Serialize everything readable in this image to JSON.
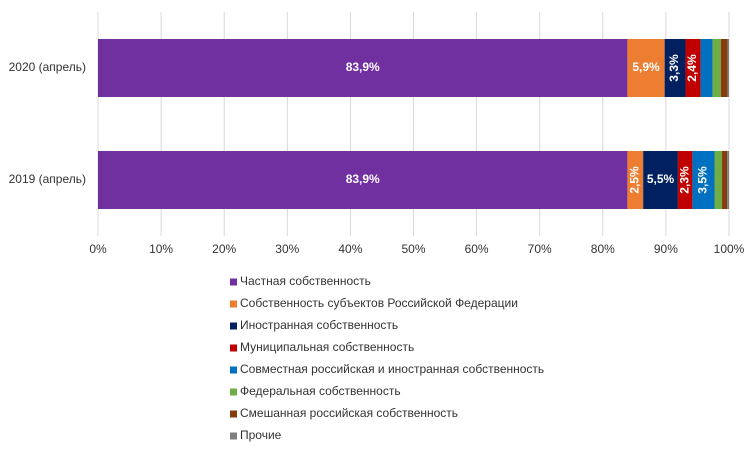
{
  "chart_data": {
    "type": "stacked-bar-horizontal",
    "categories": [
      "2020 (апрель)",
      "2019 (апрель)"
    ],
    "series": [
      {
        "name": "Частная собственность",
        "color": "#7030a0",
        "values": [
          83.9,
          83.9
        ],
        "value_labels": [
          "83,9%",
          "83,9%"
        ]
      },
      {
        "name": "Собственность субъектов Российской Федерации",
        "color": "#ed7d31",
        "values": [
          5.9,
          2.5
        ],
        "value_labels": [
          "5,9%",
          "2,5%"
        ]
      },
      {
        "name": "Иностранная собственность",
        "color": "#002060",
        "values": [
          3.3,
          5.5
        ],
        "value_labels": [
          "3,3%",
          "5,5%"
        ]
      },
      {
        "name": "Муниципальная собственность",
        "color": "#c00000",
        "values": [
          2.4,
          2.3
        ],
        "value_labels": [
          "2,4%",
          "2,3%"
        ]
      },
      {
        "name": "Совместная российская и иностранная собственность",
        "color": "#0070c0",
        "values": [
          1.9,
          3.5
        ],
        "value_labels": [
          null,
          "3,5%"
        ]
      },
      {
        "name": "Федеральная собственность",
        "color": "#70ad47",
        "values": [
          1.3,
          1.2
        ],
        "value_labels": [
          null,
          null
        ]
      },
      {
        "name": "Смешанная российская собственность",
        "color": "#843c0c",
        "values": [
          1.1,
          0.8
        ],
        "value_labels": [
          null,
          null
        ]
      },
      {
        "name": "Прочие",
        "color": "#7f7f7f",
        "values": [
          0.2,
          0.3
        ],
        "value_labels": [
          null,
          null
        ]
      }
    ],
    "xlim": [
      0,
      100
    ],
    "xticks": [
      {
        "value": 0,
        "label": "0%"
      },
      {
        "value": 10,
        "label": "10%"
      },
      {
        "value": 20,
        "label": "20%"
      },
      {
        "value": 30,
        "label": "30%"
      },
      {
        "value": 40,
        "label": "40%"
      },
      {
        "value": 50,
        "label": "50%"
      },
      {
        "value": 60,
        "label": "60%"
      },
      {
        "value": 70,
        "label": "70%"
      },
      {
        "value": 80,
        "label": "80%"
      },
      {
        "value": 90,
        "label": "90%"
      },
      {
        "value": 100,
        "label": "100%"
      }
    ],
    "grid": true,
    "legend": "bottom"
  }
}
